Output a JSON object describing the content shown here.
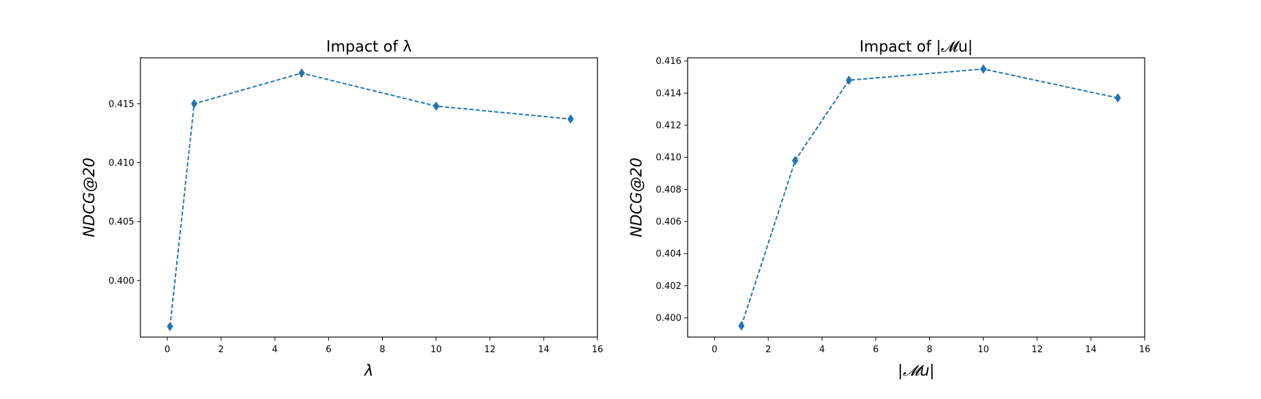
{
  "chart_data": [
    {
      "type": "line",
      "title": "Impact of λ",
      "xlabel": "λ",
      "ylabel": "NDCG@20",
      "xlim": [
        -1,
        16
      ],
      "ylim": [
        0.3952,
        0.4189
      ],
      "xticks": [
        0,
        2,
        4,
        6,
        8,
        10,
        12,
        14,
        16
      ],
      "yticks": [
        0.4,
        0.405,
        0.41,
        0.415
      ],
      "ytick_labels": [
        "0.400",
        "0.405",
        "0.410",
        "0.415"
      ],
      "grid": false,
      "legend": "none",
      "series": [
        {
          "x": [
            0.1,
            1,
            5,
            10,
            15
          ],
          "y": [
            0.3961,
            0.415,
            0.4176,
            0.4148,
            0.4137
          ],
          "color": "#1f77b4",
          "linestyle": "dashed",
          "marker": "diamond"
        }
      ]
    },
    {
      "type": "line",
      "title": "Impact of |𝓜u|",
      "xlabel": "|𝓜u|",
      "ylabel": "NDCG@20",
      "xlim": [
        -1,
        16
      ],
      "ylim": [
        0.3988,
        0.4162
      ],
      "xticks": [
        0,
        2,
        4,
        6,
        8,
        10,
        12,
        14,
        16
      ],
      "yticks": [
        0.4,
        0.402,
        0.404,
        0.406,
        0.408,
        0.41,
        0.412,
        0.414,
        0.416
      ],
      "ytick_labels": [
        "0.400",
        "0.402",
        "0.404",
        "0.406",
        "0.408",
        "0.410",
        "0.412",
        "0.414",
        "0.416"
      ],
      "grid": false,
      "legend": "none",
      "series": [
        {
          "x": [
            1,
            3,
            5,
            10,
            15
          ],
          "y": [
            0.3995,
            0.4098,
            0.4148,
            0.4155,
            0.4137
          ],
          "color": "#1f77b4",
          "linestyle": "dashed",
          "marker": "diamond"
        }
      ]
    }
  ]
}
